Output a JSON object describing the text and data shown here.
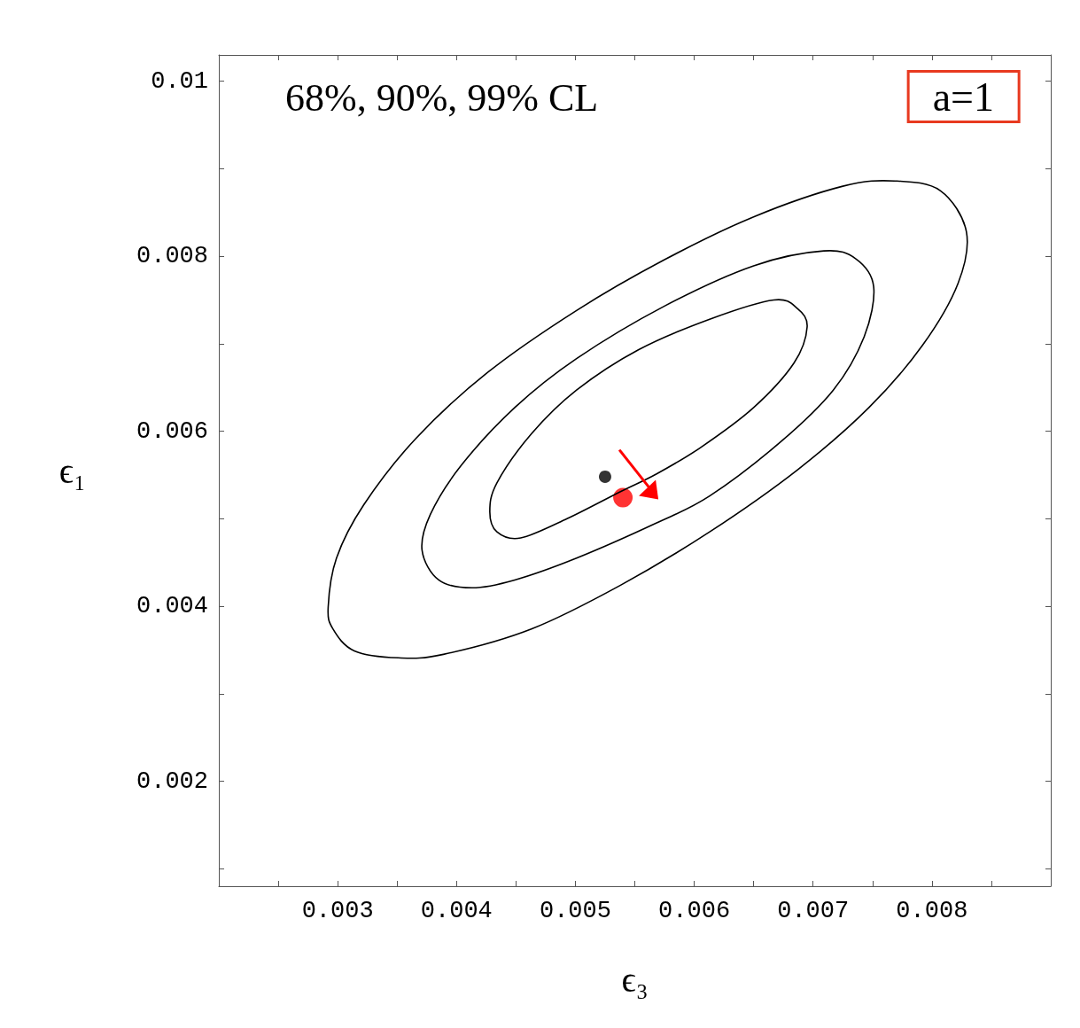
{
  "chart_data": {
    "type": "scatter",
    "xlabel": "ϵ₃",
    "ylabel": "ϵ₁",
    "annotations": [
      "68%, 90%, 99% CL",
      "a=1"
    ],
    "xlim": [
      0.002,
      0.009
    ],
    "ylim": [
      0.0008,
      0.0103
    ],
    "xticks": [
      {
        "value": 0.0025,
        "label": null
      },
      0.003,
      {
        "value": 0.0035,
        "label": null
      },
      0.004,
      {
        "value": 0.0045,
        "label": null
      },
      0.005,
      {
        "value": 0.0055,
        "label": null
      },
      0.006,
      {
        "value": 0.0065,
        "label": null
      },
      0.007,
      {
        "value": 0.0075,
        "label": null
      },
      0.008,
      {
        "value": 0.0085,
        "label": null
      }
    ],
    "yticks": [
      {
        "value": 0.001,
        "label": null
      },
      0.002,
      {
        "value": 0.003,
        "label": null
      },
      0.004,
      {
        "value": 0.005,
        "label": null
      },
      0.006,
      {
        "value": 0.007,
        "label": null
      },
      0.008,
      {
        "value": 0.009,
        "label": null
      },
      0.01
    ],
    "grid": false,
    "marker": "circle",
    "series": [
      {
        "color": "#000000",
        "x": [
          0.00525
        ],
        "values": [
          0.00548
        ]
      },
      {
        "color": "#ff0000",
        "x": [
          0.0054
        ],
        "values": [
          0.00524
        ]
      }
    ]
  }
}
